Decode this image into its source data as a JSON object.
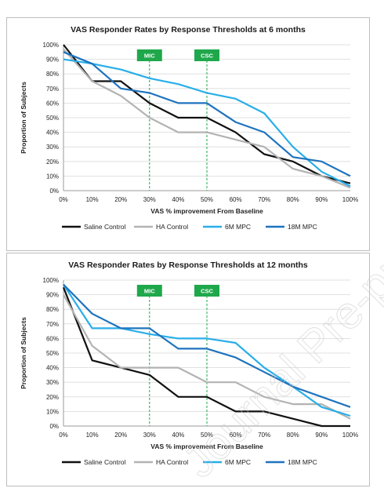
{
  "colors": {
    "saline": "#111111",
    "ha": "#b3b3b3",
    "mpc6": "#29aee8",
    "mpc18": "#1e73be",
    "badge": "#1fa84b",
    "threshold_line": "#1fa84b",
    "grid": "#d9d9d9"
  },
  "watermark": {
    "text": "Journal Pre-proof"
  },
  "chart_data": [
    {
      "type": "line",
      "title": "VAS Responder Rates by Response Thresholds at 6 months",
      "xlabel": "VAS % improvement From Baseline",
      "ylabel": "Proportion of Subjects",
      "categories": [
        "0%",
        "10%",
        "20%",
        "30%",
        "40%",
        "50%",
        "60%",
        "70%",
        "80%",
        "90%",
        "100%"
      ],
      "y_ticks": [
        "0%",
        "10%",
        "20%",
        "30%",
        "40%",
        "50%",
        "60%",
        "70%",
        "80%",
        "90%",
        "100%"
      ],
      "ylim": [
        0,
        100
      ],
      "grid": true,
      "legend": "bottom",
      "thresholds": [
        {
          "label": "MIC",
          "x": 30
        },
        {
          "label": "CSC",
          "x": 50
        }
      ],
      "series": [
        {
          "name": "Saline Control",
          "color_key": "saline",
          "values": [
            100,
            75,
            75,
            60,
            50,
            50,
            40,
            25,
            20,
            10,
            5
          ]
        },
        {
          "name": "HA Control",
          "color_key": "ha",
          "values": [
            97,
            75,
            65,
            50,
            40,
            40,
            35,
            30,
            15,
            10,
            2
          ]
        },
        {
          "name": "6M MPC",
          "color_key": "mpc6",
          "values": [
            90,
            87,
            83,
            77,
            73,
            67,
            63,
            53,
            30,
            13,
            3
          ]
        },
        {
          "name": "18M MPC",
          "color_key": "mpc18",
          "values": [
            95,
            87,
            70,
            67,
            60,
            60,
            47,
            40,
            23,
            20,
            10
          ]
        }
      ]
    },
    {
      "type": "line",
      "title": "VAS Responder Rates by Response Thresholds at 12 months",
      "xlabel": "VAS % improvement From Baseline",
      "ylabel": "Proportion of Subjects",
      "categories": [
        "0%",
        "10%",
        "20%",
        "30%",
        "40%",
        "50%",
        "60%",
        "70%",
        "80%",
        "90%",
        "100%"
      ],
      "y_ticks": [
        "0%",
        "10%",
        "20%",
        "30%",
        "40%",
        "50%",
        "60%",
        "70%",
        "80%",
        "90%",
        "100%"
      ],
      "ylim": [
        0,
        100
      ],
      "grid": true,
      "legend": "bottom",
      "thresholds": [
        {
          "label": "MIC",
          "x": 30
        },
        {
          "label": "CSC",
          "x": 50
        }
      ],
      "series": [
        {
          "name": "Saline Control",
          "color_key": "saline",
          "values": [
            95,
            45,
            40,
            35,
            20,
            20,
            10,
            10,
            5,
            0,
            0
          ]
        },
        {
          "name": "HA Control",
          "color_key": "ha",
          "values": [
            90,
            55,
            40,
            40,
            40,
            30,
            30,
            20,
            15,
            15,
            5
          ]
        },
        {
          "name": "6M MPC",
          "color_key": "mpc6",
          "values": [
            97,
            67,
            67,
            63,
            60,
            60,
            57,
            40,
            27,
            13,
            7
          ]
        },
        {
          "name": "18M MPC",
          "color_key": "mpc18",
          "values": [
            97,
            77,
            67,
            67,
            53,
            53,
            47,
            37,
            27,
            20,
            13
          ]
        }
      ]
    }
  ]
}
